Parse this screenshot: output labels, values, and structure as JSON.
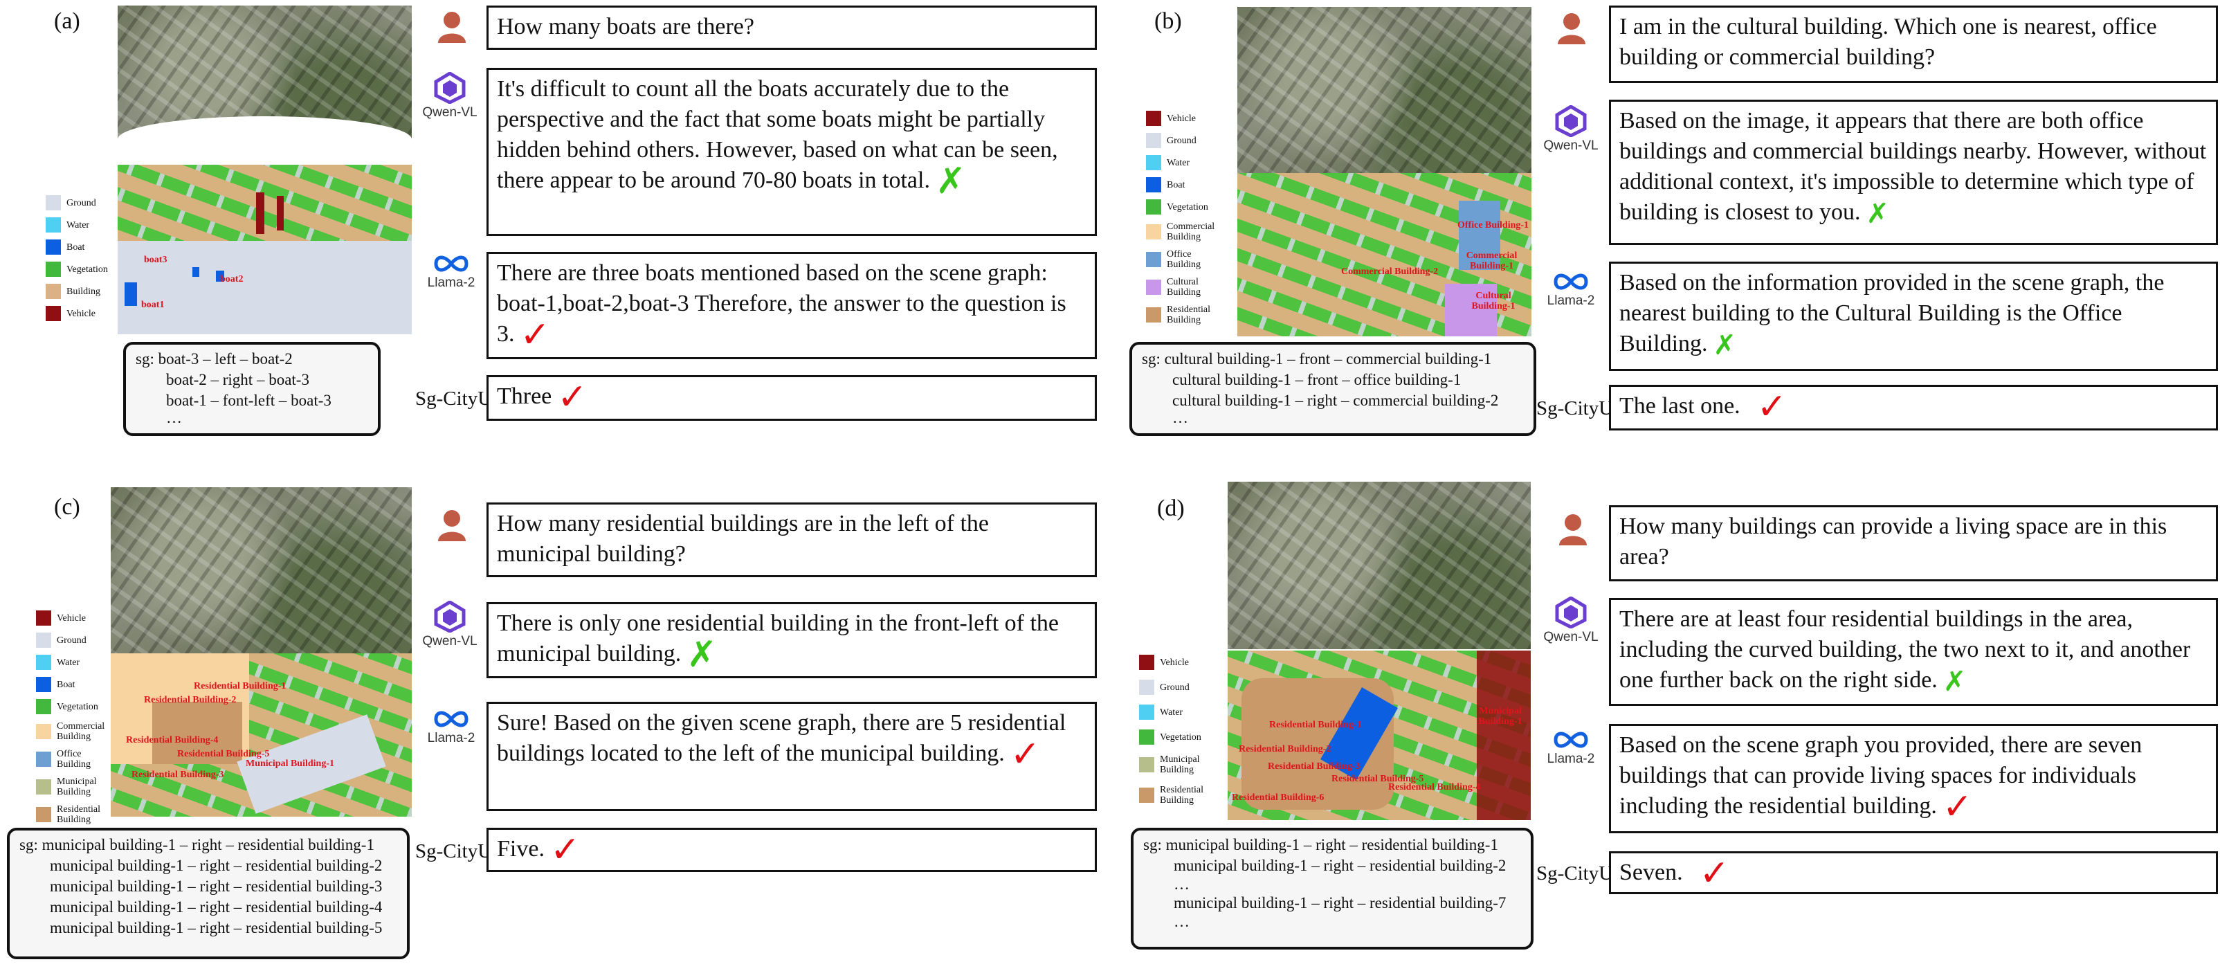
{
  "colors": {
    "ground": "#d6dde9",
    "water": "#4fd0f3",
    "boat": "#0b5fe0",
    "vegetation": "#42b83c",
    "building": "#dcb185",
    "vehicle": "#8f0f12",
    "commercial": "#f7d4a0",
    "office": "#6e9fd2",
    "cultural": "#c997ea",
    "residential": "#c9996a",
    "municipal": "#b6be8c",
    "check": "#e10f15",
    "cross": "#39c61c"
  },
  "legends": {
    "a": [
      "Ground",
      "Water",
      "Boat",
      "Vegetation",
      "Building",
      "Vehicle"
    ],
    "b": [
      "Vehicle",
      "Ground",
      "Water",
      "Boat",
      "Vegetation",
      "Commercial Building",
      "Office Building",
      "Cultural Building",
      "Residential Building"
    ],
    "c": [
      "Vehicle",
      "Ground",
      "Water",
      "Boat",
      "Vegetation",
      "Commercial Building",
      "Office Building",
      "Municipal Building",
      "Residential Building"
    ],
    "d": [
      "Vehicle",
      "Ground",
      "Water",
      "Vegetation",
      "Municipal Building",
      "Residential Building"
    ]
  },
  "model_names": {
    "qwen": "Qwen-VL",
    "llama": "Llama-2",
    "ours": "Sg-CityU"
  },
  "panels": {
    "a": {
      "tag": "(a)",
      "question": "How many boats are there?",
      "qwen": "It's difficult to count all the boats accurately due to the perspective and the fact that some boats might be partially hidden behind others. However, based on what can be seen, there appear to be around 70-80 boats in total.",
      "llama": "There are three boats mentioned based on the scene graph: boat-1,boat-2,boat-3 Therefore, the answer to the question is 3.",
      "ours": "Three",
      "marks": {
        "qwen": "✗",
        "llama": "✓",
        "ours": "✓"
      },
      "sg": [
        "sg: boat-3 – left – boat-2",
        "boat-2 – right – boat-3",
        "boat-1 – font-left – boat-3",
        "…"
      ],
      "map_labels": [
        "boat3",
        "boat2",
        "boat1"
      ]
    },
    "b": {
      "tag": "(b)",
      "question": "I am in the cultural building. Which one is nearest, office building or commercial building?",
      "qwen": "Based on the image, it appears that there are both office buildings and commercial buildings nearby. However, without additional context, it's impossible to determine which type of building is closest to you.",
      "llama": "Based on the information provided in the scene graph, the nearest building to the Cultural Building is the Office Building.",
      "ours": "The last one.",
      "marks": {
        "qwen": "✗",
        "llama": "✗",
        "ours": "✓"
      },
      "sg": [
        "sg: cultural building-1 – front – commercial building-1",
        "cultural building-1 – front – office building-1",
        "cultural building-1 – right – commercial building-2",
        "…"
      ],
      "map_labels": [
        "Office Building-1",
        "Commercial Building-1",
        "Commercial Building-2",
        "Cultural Building-1"
      ]
    },
    "c": {
      "tag": "(c)",
      "question": "How many residential buildings are in the left of the municipal building?",
      "qwen": "There is only one residential building in the front-left of the municipal building.",
      "llama": "Sure! Based on the given scene graph, there are 5 residential buildings located to the left of the municipal building.",
      "ours": "Five.",
      "marks": {
        "qwen": "✗",
        "llama": "✓",
        "ours": "✓"
      },
      "sg": [
        "sg: municipal building-1 – right – residential building-1",
        "municipal building-1 – right – residential building-2",
        "municipal building-1 – right – residential building-3",
        "municipal building-1 – right – residential building-4",
        "municipal building-1 – right – residential building-5"
      ],
      "map_labels": [
        "Residential Building-1",
        "Residential Building-2",
        "Residential Building-4",
        "Residential Building-5",
        "Residential Building-3",
        "Municipal Building-1"
      ]
    },
    "d": {
      "tag": "(d)",
      "question": "How many buildings can provide a living space  are in this area?",
      "qwen": "There are at least four residential buildings in the area, including the curved building, the two next to it, and another one further back on the right side.",
      "llama": "Based on the scene graph you provided, there are seven buildings that can provide living spaces for individuals including the residential building.",
      "ours": "Seven.",
      "marks": {
        "qwen": "✗",
        "llama": "✓",
        "ours": "✓"
      },
      "sg": [
        "sg: municipal building-1 – right – residential building-1",
        "municipal building-1 – right – residential building-2",
        "…",
        "municipal building-1 – right – residential building-7",
        "…"
      ],
      "map_labels": [
        "Residential Building-1",
        "Residential Building-2",
        "Residential Building-3",
        "Residential Building-4",
        "Residential Building-5",
        "Residential Building-6",
        "Municipal Building-1"
      ]
    }
  }
}
